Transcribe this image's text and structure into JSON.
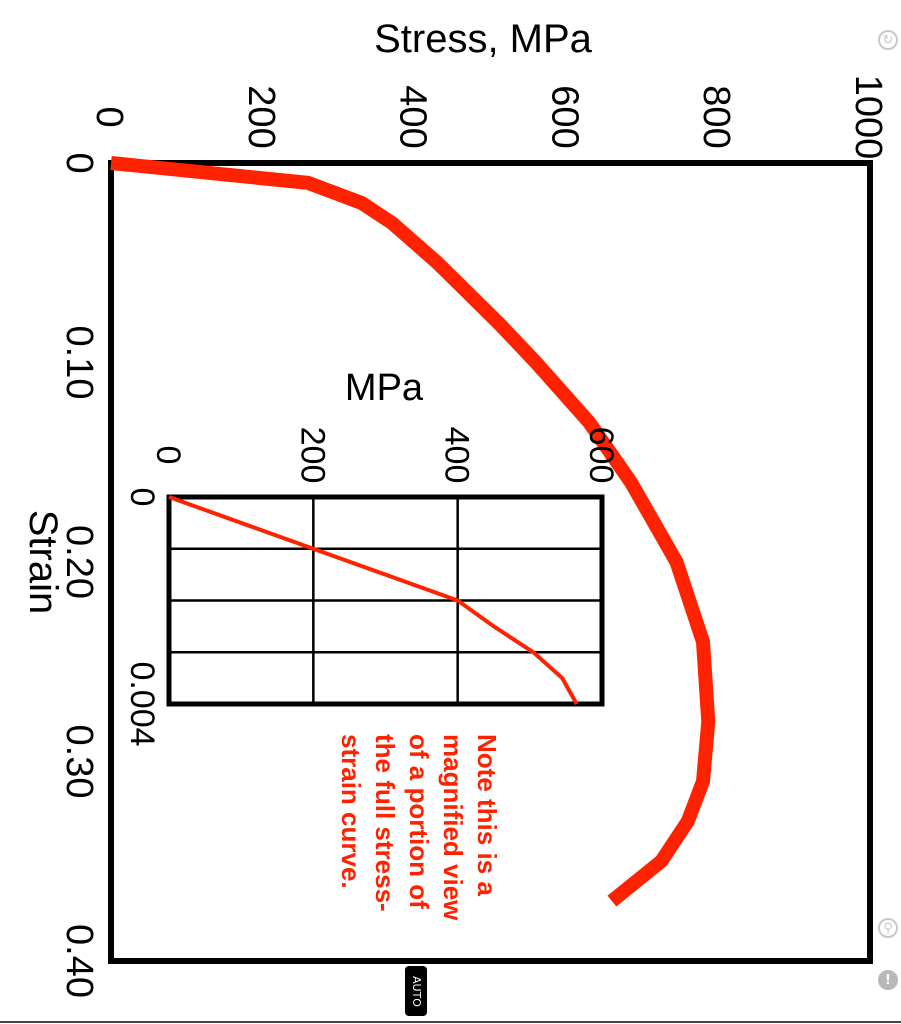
{
  "chart_data": [
    {
      "type": "line",
      "orientation": "rotated 90 degrees clockwise",
      "xlabel": "Strain",
      "ylabel": "Stress, MPa",
      "x_ticks": [
        "0",
        "0.10",
        "0.20",
        "0.30",
        "0.40"
      ],
      "y_ticks": [
        "0",
        "200",
        "400",
        "600",
        "800",
        "1000"
      ],
      "xlim": [
        0,
        0.4
      ],
      "ylim": [
        0,
        1000
      ],
      "grid": false,
      "series": [
        {
          "color": "#ff2200",
          "x": [
            0,
            0.01,
            0.02,
            0.03,
            0.05,
            0.08,
            0.1,
            0.13,
            0.16,
            0.2,
            0.24,
            0.28,
            0.31,
            0.33,
            0.35,
            0.37
          ],
          "y": [
            0,
            260,
            330,
            370,
            430,
            510,
            560,
            630,
            685,
            745,
            780,
            787,
            780,
            760,
            725,
            660
          ]
        }
      ]
    },
    {
      "type": "line",
      "orientation": "rotated 90 degrees clockwise",
      "role": "inset",
      "ylabel": "MPa",
      "x_ticks": [
        "0",
        "0.004"
      ],
      "y_ticks": [
        "0",
        "200",
        "400",
        "600"
      ],
      "xlim": [
        0,
        0.004
      ],
      "ylim": [
        0,
        600
      ],
      "grid": true,
      "series": [
        {
          "color": "#ff2200",
          "x": [
            0,
            0.001,
            0.002,
            0.0025,
            0.003,
            0.0035,
            0.004
          ],
          "y": [
            0,
            200,
            400,
            450,
            505,
            545,
            565
          ]
        }
      ],
      "annotation": "Note this is a magnified view of a portion of the full stress-strain curve."
    }
  ],
  "ui": {
    "auto_label": "AUTO",
    "top_icon": "refresh-icon",
    "mid_icon": "accessibility-icon",
    "bottom_icon": "info-icon"
  }
}
